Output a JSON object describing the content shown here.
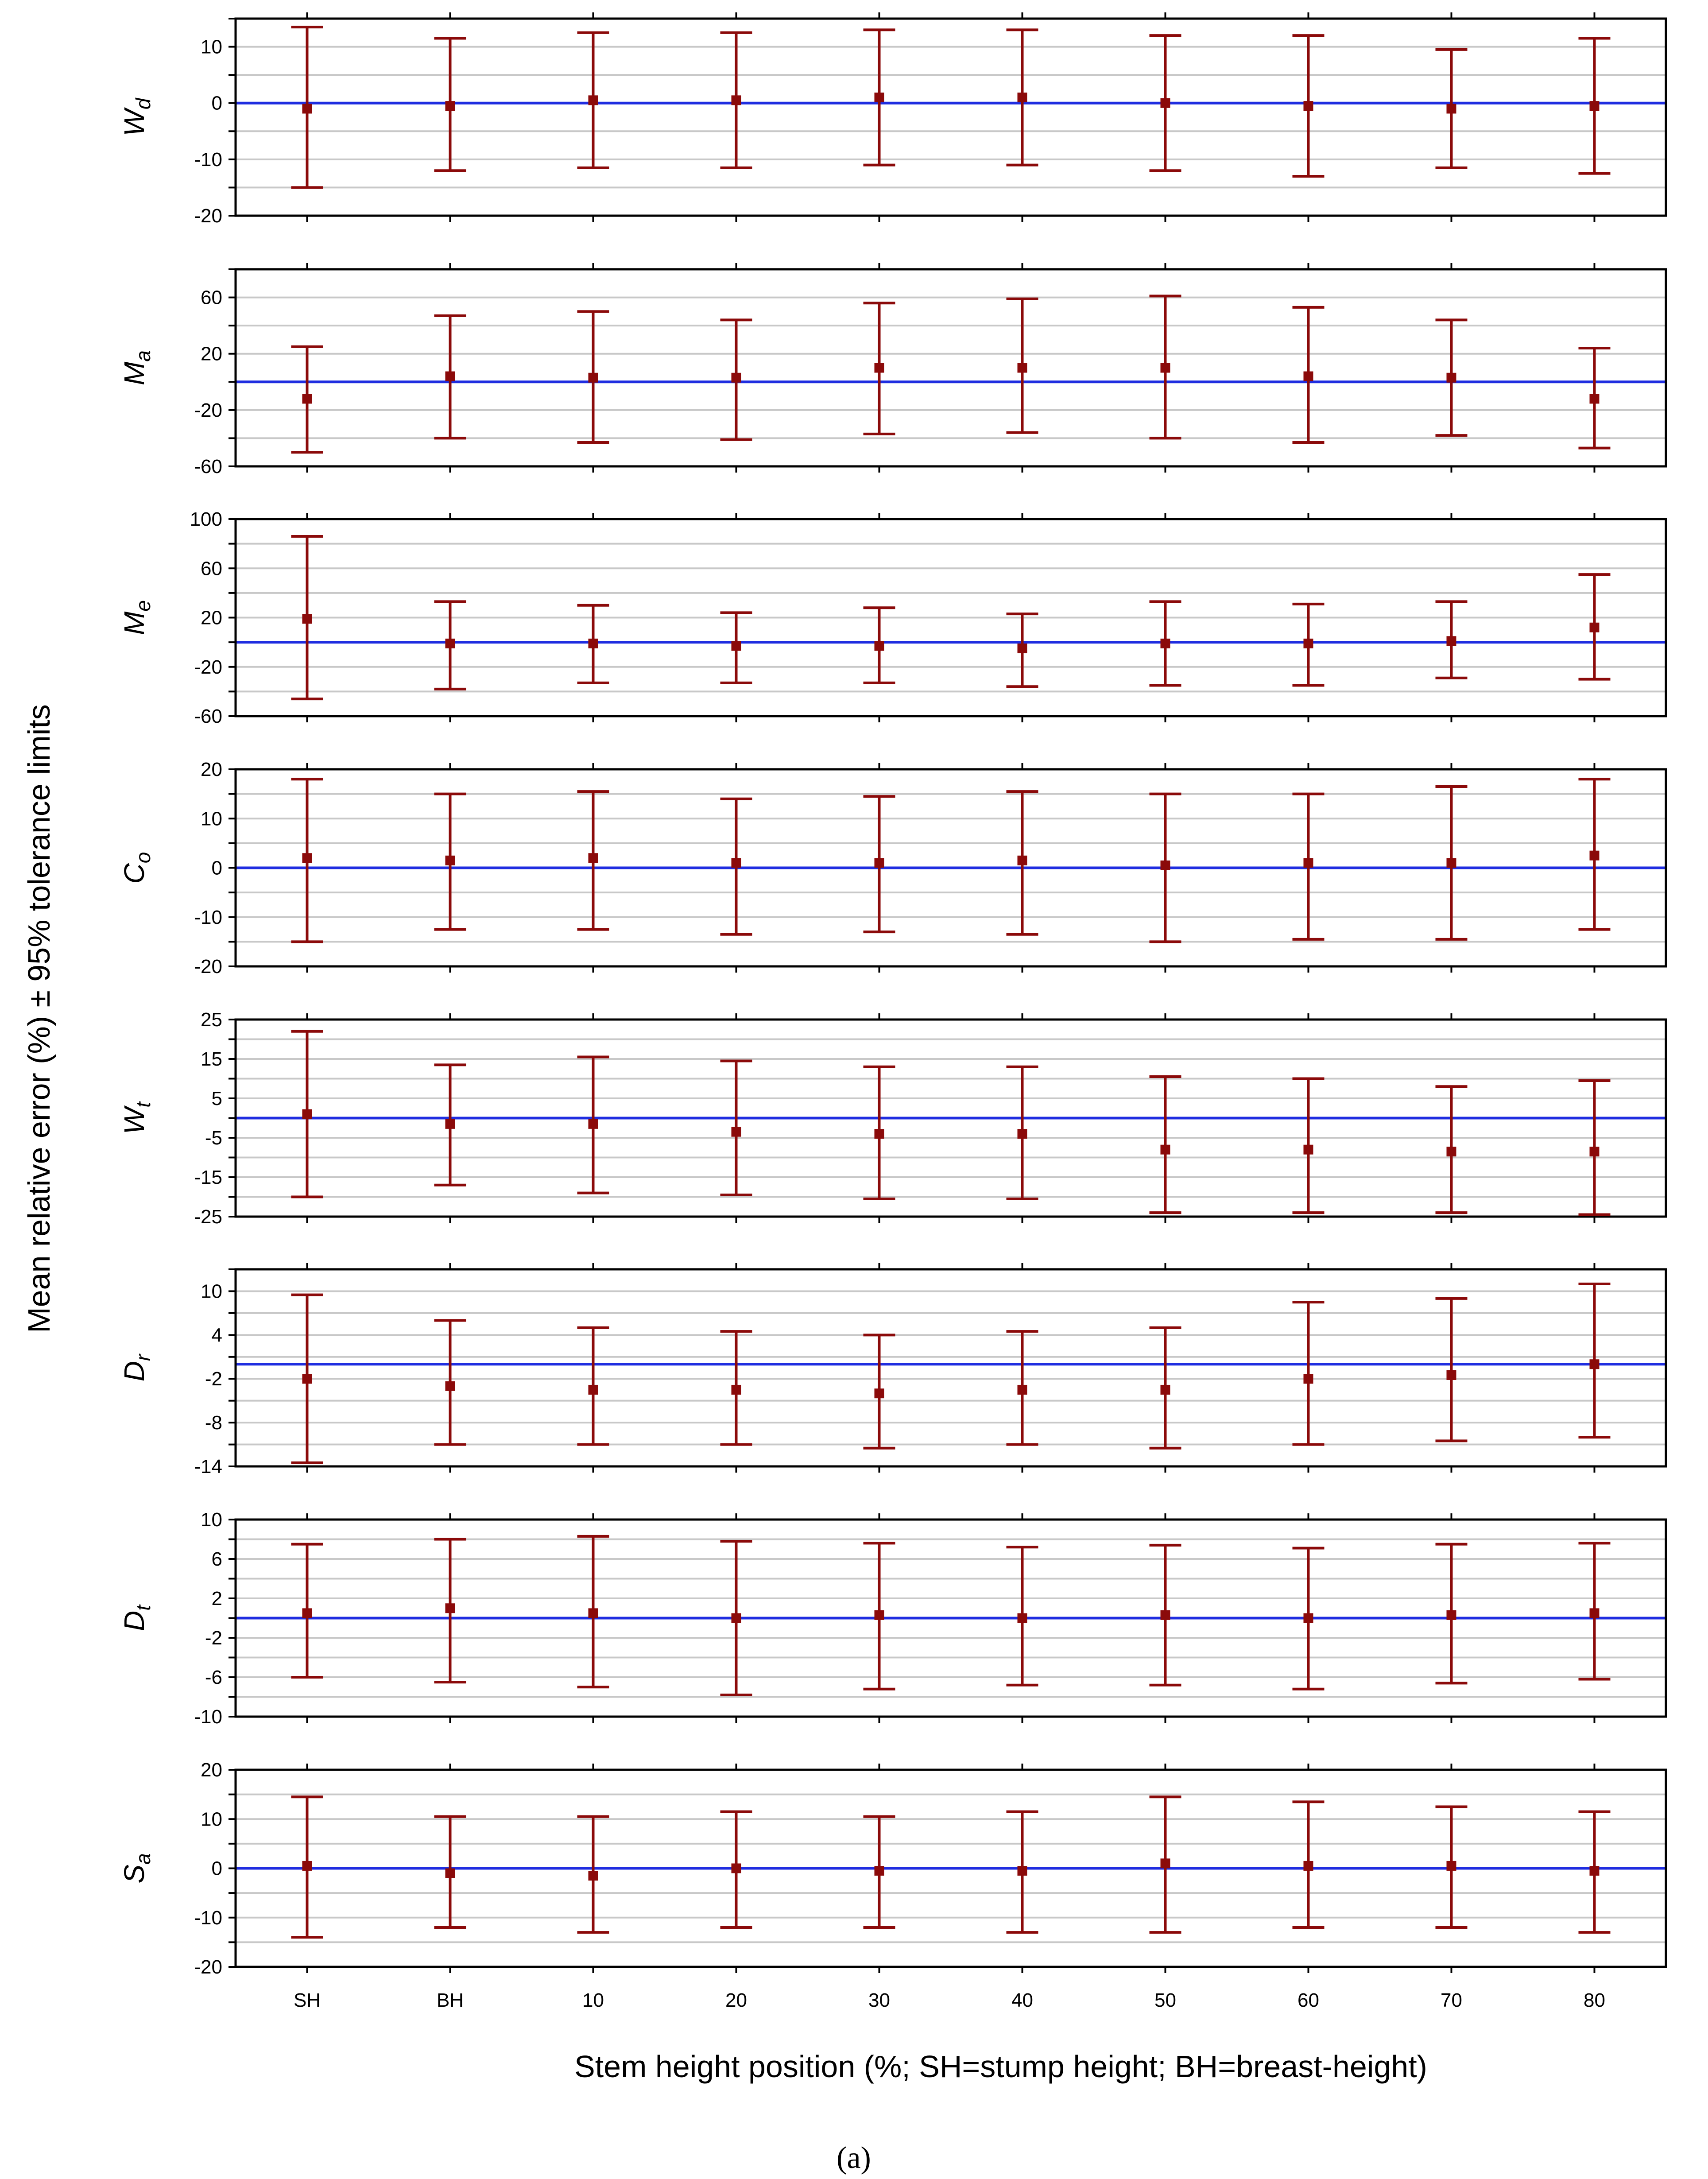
{
  "figure": {
    "ylabel": "Mean relative error (%) ± 95% tolerance limits",
    "xlabel": "Stem height position (%; SH=stump height; BH=breast-height)",
    "caption": "(a)",
    "colors": {
      "zero_line": "#1f2de0",
      "error_bar": "#8b0a0a",
      "grid": "#c8c8c8",
      "frame": "#000000"
    }
  },
  "chart_data": [
    {
      "type": "errorbar",
      "label": "W",
      "label_sub": "d",
      "categories": [
        "SH",
        "BH",
        "10",
        "20",
        "30",
        "40",
        "50",
        "60",
        "70",
        "80"
      ],
      "mean": [
        -1,
        -0.5,
        0.5,
        0.5,
        1,
        1,
        0,
        -0.5,
        -1,
        -0.5
      ],
      "lower": [
        -15,
        -12,
        -11.5,
        -11.5,
        -11,
        -11,
        -12,
        -13,
        -11.5,
        -12.5
      ],
      "upper": [
        13.5,
        11.5,
        12.5,
        12.5,
        13,
        13,
        12,
        12,
        9.5,
        11.5
      ],
      "ylim": [
        -20,
        15
      ],
      "yticks": [
        -20,
        -10,
        0,
        10
      ],
      "minor_step": 5,
      "grid": true
    },
    {
      "type": "errorbar",
      "label": "M",
      "label_sub": "a",
      "categories": [
        "SH",
        "BH",
        "10",
        "20",
        "30",
        "40",
        "50",
        "60",
        "70",
        "80"
      ],
      "mean": [
        -12,
        4,
        3,
        3,
        10,
        10,
        10,
        4,
        3,
        -12
      ],
      "lower": [
        -50,
        -40,
        -43,
        -41,
        -37,
        -36,
        -40,
        -43,
        -38,
        -47
      ],
      "upper": [
        25,
        47,
        50,
        44,
        56,
        59,
        61,
        53,
        44,
        24
      ],
      "ylim": [
        -60,
        80
      ],
      "yticks": [
        -60,
        -20,
        20,
        60
      ],
      "minor_step": 20,
      "grid": true
    },
    {
      "type": "errorbar",
      "label": "M",
      "label_sub": "e",
      "categories": [
        "SH",
        "BH",
        "10",
        "20",
        "30",
        "40",
        "50",
        "60",
        "70",
        "80"
      ],
      "mean": [
        19,
        -1,
        -1,
        -3,
        -3,
        -5,
        -1,
        -1,
        1,
        12
      ],
      "lower": [
        -46,
        -38,
        -33,
        -33,
        -33,
        -36,
        -35,
        -35,
        -29,
        -30
      ],
      "upper": [
        86,
        33,
        30,
        24,
        28,
        23,
        33,
        31,
        33,
        55
      ],
      "ylim": [
        -60,
        100
      ],
      "yticks": [
        -60,
        -20,
        20,
        60,
        100
      ],
      "minor_step": 20,
      "grid": true
    },
    {
      "type": "errorbar",
      "label": "C",
      "label_sub": "o",
      "categories": [
        "SH",
        "BH",
        "10",
        "20",
        "30",
        "40",
        "50",
        "60",
        "70",
        "80"
      ],
      "mean": [
        2,
        1.5,
        2,
        1,
        1,
        1.5,
        0.5,
        1,
        1,
        2.5
      ],
      "lower": [
        -15,
        -12.5,
        -12.5,
        -13.5,
        -13,
        -13.5,
        -15,
        -14.5,
        -14.5,
        -12.5
      ],
      "upper": [
        18,
        15,
        15.5,
        14,
        14.5,
        15.5,
        15,
        15,
        16.5,
        18
      ],
      "ylim": [
        -20,
        20
      ],
      "yticks": [
        -20,
        -10,
        0,
        10,
        20
      ],
      "minor_step": 5,
      "grid": true
    },
    {
      "type": "errorbar",
      "label": "W",
      "label_sub": "t",
      "categories": [
        "SH",
        "BH",
        "10",
        "20",
        "30",
        "40",
        "50",
        "60",
        "70",
        "80"
      ],
      "mean": [
        1,
        -1.5,
        -1.5,
        -3.5,
        -4,
        -4,
        -8,
        -8,
        -8.5,
        -8.5
      ],
      "lower": [
        -20,
        -17,
        -19,
        -19.5,
        -20.5,
        -20.5,
        -24,
        -24,
        -24,
        -24.5
      ],
      "upper": [
        22,
        13.5,
        15.5,
        14.5,
        13,
        13,
        10.5,
        10,
        8,
        9.5
      ],
      "ylim": [
        -25,
        25
      ],
      "yticks": [
        -25,
        -15,
        -5,
        5,
        15,
        25
      ],
      "minor_step": 5,
      "grid": true
    },
    {
      "type": "errorbar",
      "label": "D",
      "label_sub": "r",
      "categories": [
        "SH",
        "BH",
        "10",
        "20",
        "30",
        "40",
        "50",
        "60",
        "70",
        "80"
      ],
      "mean": [
        -2,
        -3,
        -3.5,
        -3.5,
        -4,
        -3.5,
        -3.5,
        -2,
        -1.5,
        0
      ],
      "lower": [
        -13.5,
        -11,
        -11,
        -11,
        -11.5,
        -11,
        -11.5,
        -11,
        -10.5,
        -10
      ],
      "upper": [
        9.5,
        6,
        5,
        4.5,
        4,
        4.5,
        5,
        8.5,
        9,
        11
      ],
      "ylim": [
        -14,
        13
      ],
      "yticks": [
        -14,
        -8,
        -2,
        4,
        10
      ],
      "minor_step": 3,
      "grid": true
    },
    {
      "type": "errorbar",
      "label": "D",
      "label_sub": "t",
      "categories": [
        "SH",
        "BH",
        "10",
        "20",
        "30",
        "40",
        "50",
        "60",
        "70",
        "80"
      ],
      "mean": [
        0.5,
        1,
        0.5,
        0,
        0.3,
        0,
        0.3,
        0,
        0.3,
        0.5
      ],
      "lower": [
        -6,
        -6.5,
        -7,
        -7.8,
        -7.2,
        -6.8,
        -6.8,
        -7.2,
        -6.6,
        -6.2
      ],
      "upper": [
        7.5,
        8,
        8.3,
        7.8,
        7.6,
        7.2,
        7.4,
        7.1,
        7.5,
        7.6
      ],
      "ylim": [
        -10,
        10
      ],
      "yticks": [
        -10,
        -6,
        -2,
        2,
        6,
        10
      ],
      "minor_step": 2,
      "grid": true
    },
    {
      "type": "errorbar",
      "label": "S",
      "label_sub": "a",
      "categories": [
        "SH",
        "BH",
        "10",
        "20",
        "30",
        "40",
        "50",
        "60",
        "70",
        "80"
      ],
      "mean": [
        0.5,
        -1,
        -1.5,
        0,
        -0.5,
        -0.5,
        1,
        0.5,
        0.5,
        -0.5
      ],
      "lower": [
        -14,
        -12,
        -13,
        -12,
        -12,
        -13,
        -13,
        -12,
        -12,
        -13
      ],
      "upper": [
        14.5,
        10.5,
        10.5,
        11.5,
        10.5,
        11.5,
        14.5,
        13.5,
        12.5,
        11.5
      ],
      "ylim": [
        -20,
        20
      ],
      "yticks": [
        -20,
        -10,
        0,
        10,
        20
      ],
      "minor_step": 5,
      "grid": true
    }
  ]
}
